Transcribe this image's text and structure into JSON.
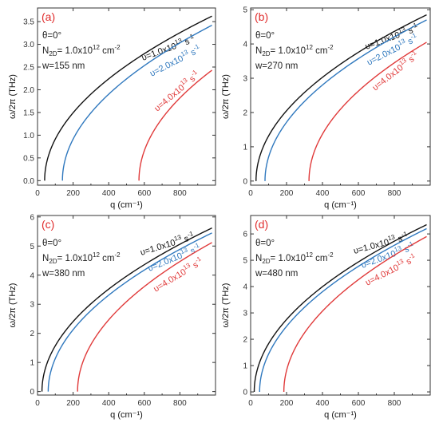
{
  "colors": {
    "black": "#111111",
    "blue": "#2f78be",
    "red": "#e03a3a",
    "panel_label": "#e02d2d"
  },
  "chart_data": [
    {
      "type": "line",
      "panel_label": "(a)",
      "theta": "θ=0°",
      "density": "N2D= 1.0x1012 cm-2",
      "width_text": "w=155 nm",
      "xlabel": "q (cm⁻¹)",
      "ylabel": "ω/2π (THz)",
      "xlim": [
        0,
        1000
      ],
      "ylim": [
        -0.1,
        3.8
      ],
      "xticks": [
        0,
        200,
        400,
        600,
        800
      ],
      "yticks": [
        0.0,
        0.5,
        1.0,
        1.5,
        2.0,
        2.5,
        3.0,
        3.5
      ],
      "ytick_labels": [
        "0.0",
        "0.5",
        "1.0",
        "1.5",
        "2.0",
        "2.5",
        "3.0",
        "3.5"
      ],
      "series": [
        {
          "name": "υ=1.0x10¹³ s⁻¹",
          "color": "black",
          "q0": 40,
          "x": [
            40,
            60,
            100,
            200,
            400,
            600,
            800,
            980
          ],
          "y": [
            0.0,
            0.4,
            0.77,
            1.28,
            2.0,
            2.6,
            3.15,
            3.62
          ]
        },
        {
          "name": "υ=2.0x10¹³ s⁻¹",
          "color": "blue",
          "q0": 140,
          "x": [
            140,
            160,
            200,
            300,
            400,
            600,
            800,
            980
          ],
          "y": [
            0.0,
            0.32,
            0.62,
            1.06,
            1.43,
            2.21,
            2.86,
            3.42
          ]
        },
        {
          "name": "υ=4.0x10¹³ s⁻¹",
          "color": "red",
          "q0": 570,
          "x": [
            570,
            590,
            620,
            700,
            800,
            900,
            980
          ],
          "y": [
            0.0,
            0.46,
            0.72,
            1.18,
            1.66,
            2.1,
            2.43
          ]
        }
      ]
    },
    {
      "type": "line",
      "panel_label": "(b)",
      "theta": "θ=0°",
      "density": "N2D= 1.0x1012 cm-2",
      "width_text": "w=270 nm",
      "xlabel": "q (cm⁻¹)",
      "ylabel": "ω/2π (THz)",
      "xlim": [
        0,
        1000
      ],
      "ylim": [
        -0.12,
        5.05
      ],
      "xticks": [
        0,
        200,
        400,
        600,
        800
      ],
      "yticks": [
        0,
        1,
        2,
        3,
        4,
        5
      ],
      "ytick_labels": [
        "0",
        "1",
        "2",
        "3",
        "4",
        "5"
      ],
      "series": [
        {
          "name": "υ=1.0x10¹³ s⁻¹",
          "color": "black",
          "q0": 30,
          "x": [
            30,
            50,
            100,
            200,
            400,
            600,
            800,
            980
          ],
          "y": [
            0.0,
            0.6,
            1.1,
            1.75,
            2.7,
            3.5,
            4.2,
            4.85
          ]
        },
        {
          "name": "υ=2.0x10¹³ s⁻¹",
          "color": "blue",
          "q0": 80,
          "x": [
            80,
            100,
            150,
            200,
            400,
            600,
            800,
            980
          ],
          "y": [
            0.0,
            0.55,
            1.02,
            1.38,
            2.5,
            3.32,
            4.05,
            4.7
          ]
        },
        {
          "name": "υ=4.0x10¹³ s⁻¹",
          "color": "red",
          "q0": 325,
          "x": [
            325,
            345,
            400,
            500,
            600,
            800,
            980
          ],
          "y": [
            0.0,
            0.6,
            1.2,
            1.85,
            2.45,
            3.3,
            4.05
          ]
        }
      ]
    },
    {
      "type": "line",
      "panel_label": "(c)",
      "theta": "θ=0°",
      "density": "N2D= 1.0x1012 cm-2",
      "width_text": "w=380 nm",
      "xlabel": "q (cm⁻¹)",
      "ylabel": "ω/2π (THz)",
      "xlim": [
        0,
        1000
      ],
      "ylim": [
        -0.12,
        6.05
      ],
      "xticks": [
        0,
        200,
        400,
        600,
        800
      ],
      "yticks": [
        0,
        1,
        2,
        3,
        4,
        5,
        6
      ],
      "ytick_labels": [
        "0",
        "1",
        "2",
        "3",
        "4",
        "5",
        "6"
      ],
      "series": [
        {
          "name": "υ=1.0x10¹³ s⁻¹",
          "color": "black",
          "q0": 25,
          "x": [
            25,
            45,
            100,
            200,
            400,
            600,
            800,
            980
          ],
          "y": [
            0.0,
            0.75,
            1.3,
            2.0,
            3.1,
            4.0,
            4.85,
            5.62
          ]
        },
        {
          "name": "υ=2.0x10¹³ s⁻¹",
          "color": "blue",
          "q0": 60,
          "x": [
            60,
            80,
            120,
            200,
            400,
            600,
            800,
            980
          ],
          "y": [
            0.0,
            0.7,
            1.15,
            1.72,
            2.9,
            3.85,
            4.7,
            5.45
          ]
        },
        {
          "name": "υ=4.0x10¹³ s⁻¹",
          "color": "red",
          "q0": 225,
          "x": [
            225,
            245,
            300,
            400,
            600,
            800,
            980
          ],
          "y": [
            0.0,
            0.7,
            1.3,
            2.05,
            3.18,
            4.2,
            5.12
          ]
        }
      ]
    },
    {
      "type": "line",
      "panel_label": "(d)",
      "theta": "θ=0°",
      "density": "N2D= 1.0x1012 cm-2",
      "width_text": "w=480 nm",
      "xlabel": "q (cm⁻¹)",
      "ylabel": "ω/2π (THz)",
      "xlim": [
        0,
        1000
      ],
      "ylim": [
        -0.12,
        6.7
      ],
      "xticks": [
        0,
        200,
        400,
        600,
        800
      ],
      "yticks": [
        0,
        1,
        2,
        3,
        4,
        5,
        6
      ],
      "ytick_labels": [
        "0",
        "1",
        "2",
        "3",
        "4",
        "5",
        "6"
      ],
      "series": [
        {
          "name": "υ=1.0x10¹³ s⁻¹",
          "color": "black",
          "q0": 20,
          "x": [
            20,
            40,
            100,
            200,
            400,
            600,
            800,
            980
          ],
          "y": [
            0.0,
            0.85,
            1.45,
            2.2,
            3.4,
            4.5,
            5.45,
            6.35
          ]
        },
        {
          "name": "υ=2.0x10¹³ s⁻¹",
          "color": "blue",
          "q0": 50,
          "x": [
            50,
            70,
            120,
            200,
            400,
            600,
            800,
            980
          ],
          "y": [
            0.0,
            0.8,
            1.35,
            2.0,
            3.25,
            4.35,
            5.3,
            6.2
          ]
        },
        {
          "name": "υ=4.0x10¹³ s⁻¹",
          "color": "red",
          "q0": 185,
          "x": [
            185,
            205,
            250,
            300,
            400,
            600,
            800,
            980
          ],
          "y": [
            0.0,
            0.75,
            1.2,
            1.6,
            2.35,
            3.6,
            4.8,
            5.9
          ]
        }
      ]
    }
  ]
}
